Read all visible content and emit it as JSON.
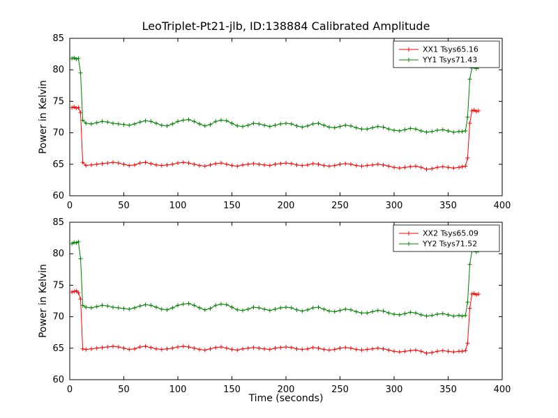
{
  "figure": {
    "title": "LeoTriplet-Pt21-jlb, ID:138884 Calibrated Amplitude",
    "xlabel": "Time (seconds)",
    "ylabel": "Power in Kelvin",
    "background": "#ffffff",
    "axis_color": "#000000"
  },
  "chart_data": [
    {
      "type": "line",
      "ylabel": "Power in Kelvin",
      "xlim": [
        0,
        400
      ],
      "ylim": [
        60,
        85
      ],
      "xticks": [
        0,
        50,
        100,
        150,
        200,
        250,
        300,
        350,
        400
      ],
      "yticks": [
        60,
        65,
        70,
        75,
        80,
        85
      ],
      "legend_position": "upper right",
      "marker": "plus",
      "x": [
        2,
        4,
        6,
        8,
        10,
        12,
        15,
        20,
        25,
        30,
        35,
        40,
        45,
        50,
        55,
        60,
        65,
        70,
        75,
        80,
        85,
        90,
        95,
        100,
        105,
        110,
        115,
        120,
        125,
        130,
        135,
        140,
        145,
        150,
        155,
        160,
        165,
        170,
        175,
        180,
        185,
        190,
        195,
        200,
        205,
        210,
        215,
        220,
        225,
        230,
        235,
        240,
        245,
        250,
        255,
        260,
        265,
        270,
        275,
        280,
        285,
        290,
        295,
        300,
        305,
        310,
        315,
        320,
        325,
        330,
        335,
        340,
        345,
        350,
        355,
        360,
        363,
        366,
        368,
        370,
        372,
        374,
        376,
        378
      ],
      "series": [
        {
          "name": "XX1 Tsys65.16",
          "color": "#ff0000",
          "values": [
            74.0,
            74.1,
            73.9,
            74.0,
            73.2,
            65.3,
            64.8,
            64.9,
            65.0,
            65.1,
            65.2,
            65.3,
            65.2,
            65.0,
            64.8,
            64.9,
            65.2,
            65.3,
            65.1,
            64.9,
            64.8,
            64.9,
            65.0,
            65.2,
            65.3,
            65.2,
            65.0,
            64.8,
            64.7,
            64.9,
            65.1,
            65.2,
            65.0,
            64.8,
            64.7,
            64.9,
            65.0,
            65.1,
            65.0,
            64.9,
            64.8,
            65.0,
            65.1,
            65.2,
            65.1,
            64.9,
            64.8,
            64.9,
            65.1,
            65.0,
            64.8,
            64.7,
            64.8,
            65.0,
            65.1,
            65.0,
            64.8,
            64.7,
            64.8,
            64.9,
            65.0,
            64.9,
            64.7,
            64.5,
            64.4,
            64.5,
            64.6,
            64.7,
            64.5,
            64.2,
            64.3,
            64.5,
            64.6,
            64.5,
            64.4,
            64.5,
            64.6,
            64.7,
            66.0,
            71.5,
            73.5,
            73.6,
            73.4,
            73.5
          ]
        },
        {
          "name": "YY1 Tsys71.43",
          "color": "#008000",
          "values": [
            81.8,
            81.9,
            81.7,
            81.8,
            79.5,
            72.0,
            71.5,
            71.4,
            71.6,
            71.8,
            71.7,
            71.5,
            71.4,
            71.3,
            71.2,
            71.4,
            71.7,
            71.9,
            71.8,
            71.5,
            71.2,
            71.1,
            71.4,
            71.8,
            72.0,
            72.1,
            71.8,
            71.4,
            71.1,
            71.3,
            71.8,
            72.0,
            71.9,
            71.5,
            71.1,
            71.0,
            71.2,
            71.5,
            71.4,
            71.2,
            71.0,
            71.2,
            71.4,
            71.5,
            71.4,
            71.1,
            70.9,
            71.1,
            71.4,
            71.5,
            71.2,
            70.9,
            70.8,
            71.0,
            71.2,
            71.1,
            70.8,
            70.6,
            70.6,
            70.8,
            71.0,
            70.9,
            70.6,
            70.4,
            70.3,
            70.5,
            70.7,
            70.6,
            70.3,
            70.1,
            70.2,
            70.4,
            70.5,
            70.3,
            70.1,
            70.2,
            70.2,
            70.3,
            72.5,
            78.5,
            80.3,
            80.5,
            80.2,
            80.4
          ]
        }
      ]
    },
    {
      "type": "line",
      "xlabel": "Time (seconds)",
      "ylabel": "Power in Kelvin",
      "xlim": [
        0,
        400
      ],
      "ylim": [
        60,
        85
      ],
      "xticks": [
        0,
        50,
        100,
        150,
        200,
        250,
        300,
        350,
        400
      ],
      "yticks": [
        60,
        65,
        70,
        75,
        80,
        85
      ],
      "legend_position": "upper right",
      "marker": "plus",
      "x": [
        2,
        4,
        6,
        8,
        10,
        12,
        15,
        20,
        25,
        30,
        35,
        40,
        45,
        50,
        55,
        60,
        65,
        70,
        75,
        80,
        85,
        90,
        95,
        100,
        105,
        110,
        115,
        120,
        125,
        130,
        135,
        140,
        145,
        150,
        155,
        160,
        165,
        170,
        175,
        180,
        185,
        190,
        195,
        200,
        205,
        210,
        215,
        220,
        225,
        230,
        235,
        240,
        245,
        250,
        255,
        260,
        265,
        270,
        275,
        280,
        285,
        290,
        295,
        300,
        305,
        310,
        315,
        320,
        325,
        330,
        335,
        340,
        345,
        350,
        355,
        360,
        363,
        366,
        368,
        370,
        372,
        374,
        376,
        378
      ],
      "series": [
        {
          "name": "XX2 Tsys65.09",
          "color": "#ff0000",
          "values": [
            73.9,
            74.0,
            74.1,
            73.8,
            72.8,
            64.9,
            64.8,
            64.9,
            65.0,
            65.1,
            65.2,
            65.3,
            65.2,
            65.0,
            64.8,
            64.9,
            65.2,
            65.3,
            65.1,
            64.9,
            64.8,
            64.9,
            65.0,
            65.2,
            65.3,
            65.2,
            65.0,
            64.8,
            64.7,
            64.9,
            65.1,
            65.2,
            65.0,
            64.8,
            64.7,
            64.9,
            65.0,
            65.1,
            65.0,
            64.9,
            64.8,
            65.0,
            65.1,
            65.2,
            65.1,
            64.9,
            64.8,
            64.9,
            65.1,
            65.0,
            64.8,
            64.7,
            64.8,
            65.0,
            65.1,
            65.0,
            64.8,
            64.7,
            64.8,
            64.9,
            65.0,
            64.9,
            64.7,
            64.5,
            64.4,
            64.5,
            64.6,
            64.7,
            64.5,
            64.2,
            64.3,
            64.5,
            64.6,
            64.5,
            64.4,
            64.5,
            64.5,
            64.6,
            65.8,
            71.3,
            73.6,
            73.7,
            73.5,
            73.6
          ]
        },
        {
          "name": "YY2 Tsys71.52",
          "color": "#008000",
          "values": [
            81.6,
            81.8,
            81.7,
            81.9,
            79.2,
            71.8,
            71.5,
            71.4,
            71.6,
            71.8,
            71.7,
            71.5,
            71.4,
            71.3,
            71.2,
            71.4,
            71.7,
            71.9,
            71.8,
            71.5,
            71.2,
            71.1,
            71.4,
            71.8,
            72.0,
            72.1,
            71.8,
            71.4,
            71.1,
            71.3,
            71.8,
            72.0,
            71.9,
            71.5,
            71.1,
            71.0,
            71.2,
            71.5,
            71.4,
            71.2,
            71.0,
            71.2,
            71.4,
            71.5,
            71.4,
            71.1,
            70.9,
            71.1,
            71.4,
            71.5,
            71.2,
            70.9,
            70.8,
            71.0,
            71.2,
            71.1,
            70.8,
            70.6,
            70.6,
            70.8,
            71.0,
            70.9,
            70.6,
            70.4,
            70.3,
            70.5,
            70.7,
            70.6,
            70.3,
            70.1,
            70.2,
            70.4,
            70.5,
            70.3,
            70.1,
            70.2,
            70.1,
            70.2,
            72.3,
            78.3,
            80.4,
            80.6,
            80.3,
            80.5
          ]
        }
      ]
    }
  ]
}
